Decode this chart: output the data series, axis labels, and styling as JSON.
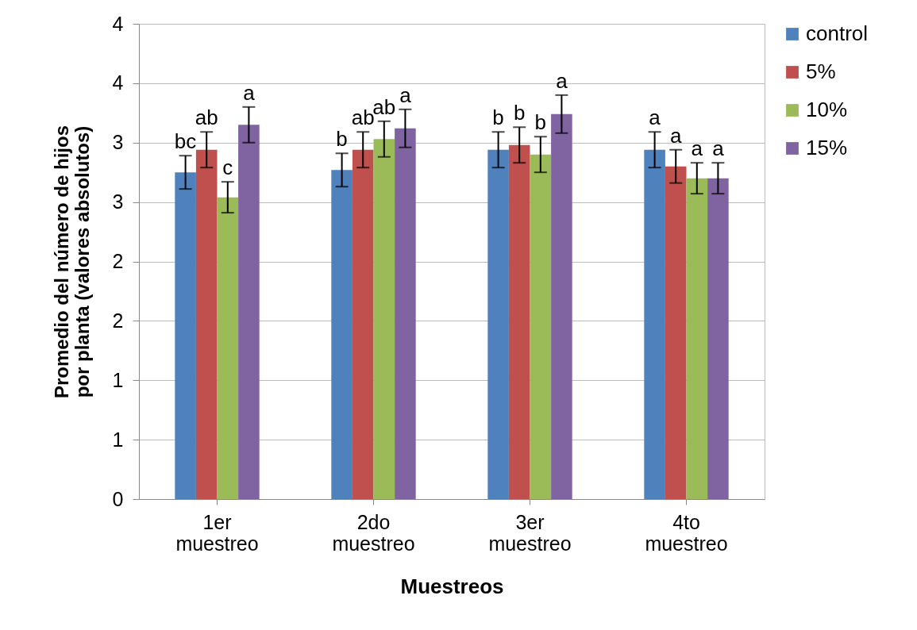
{
  "chart_data": {
    "type": "bar",
    "xlabel": "Muestreos",
    "ylabel": "Promedio del número de hijos por planta (valores absolutos)",
    "categories": [
      "1er muestreo",
      "2do muestreo",
      "3er muestreo",
      "4to muestreo"
    ],
    "series": [
      {
        "name": "control",
        "color": "#4f81bd",
        "values": [
          2.75,
          2.77,
          2.94,
          2.94
        ],
        "errors": [
          0.14,
          0.14,
          0.15,
          0.15
        ],
        "value_labels": [
          "bc",
          "b",
          "b",
          "a"
        ]
      },
      {
        "name": "5%",
        "color": "#c0504d",
        "values": [
          2.94,
          2.94,
          2.98,
          2.8
        ],
        "errors": [
          0.15,
          0.15,
          0.15,
          0.14
        ],
        "value_labels": [
          "ab",
          "ab",
          "b",
          "a"
        ]
      },
      {
        "name": "10%",
        "color": "#9bbb59",
        "values": [
          2.54,
          3.03,
          2.9,
          2.7
        ],
        "errors": [
          0.13,
          0.15,
          0.15,
          0.13
        ],
        "value_labels": [
          "c",
          "ab",
          "b",
          "a"
        ]
      },
      {
        "name": "15%",
        "color": "#8064a2",
        "values": [
          3.15,
          3.12,
          3.24,
          2.7
        ],
        "errors": [
          0.15,
          0.16,
          0.16,
          0.13
        ],
        "value_labels": [
          "a",
          "a",
          "a",
          "a"
        ]
      }
    ],
    "ylim": [
      0,
      4
    ],
    "yticks": [
      0,
      {
        "value": 0.5,
        "label": "1"
      },
      1,
      {
        "value": 1.5,
        "label": "2"
      },
      2,
      {
        "value": 2.5,
        "label": "3"
      },
      3,
      {
        "value": 3.5,
        "label": "4"
      },
      4
    ],
    "grid": "y",
    "legend": "right"
  }
}
